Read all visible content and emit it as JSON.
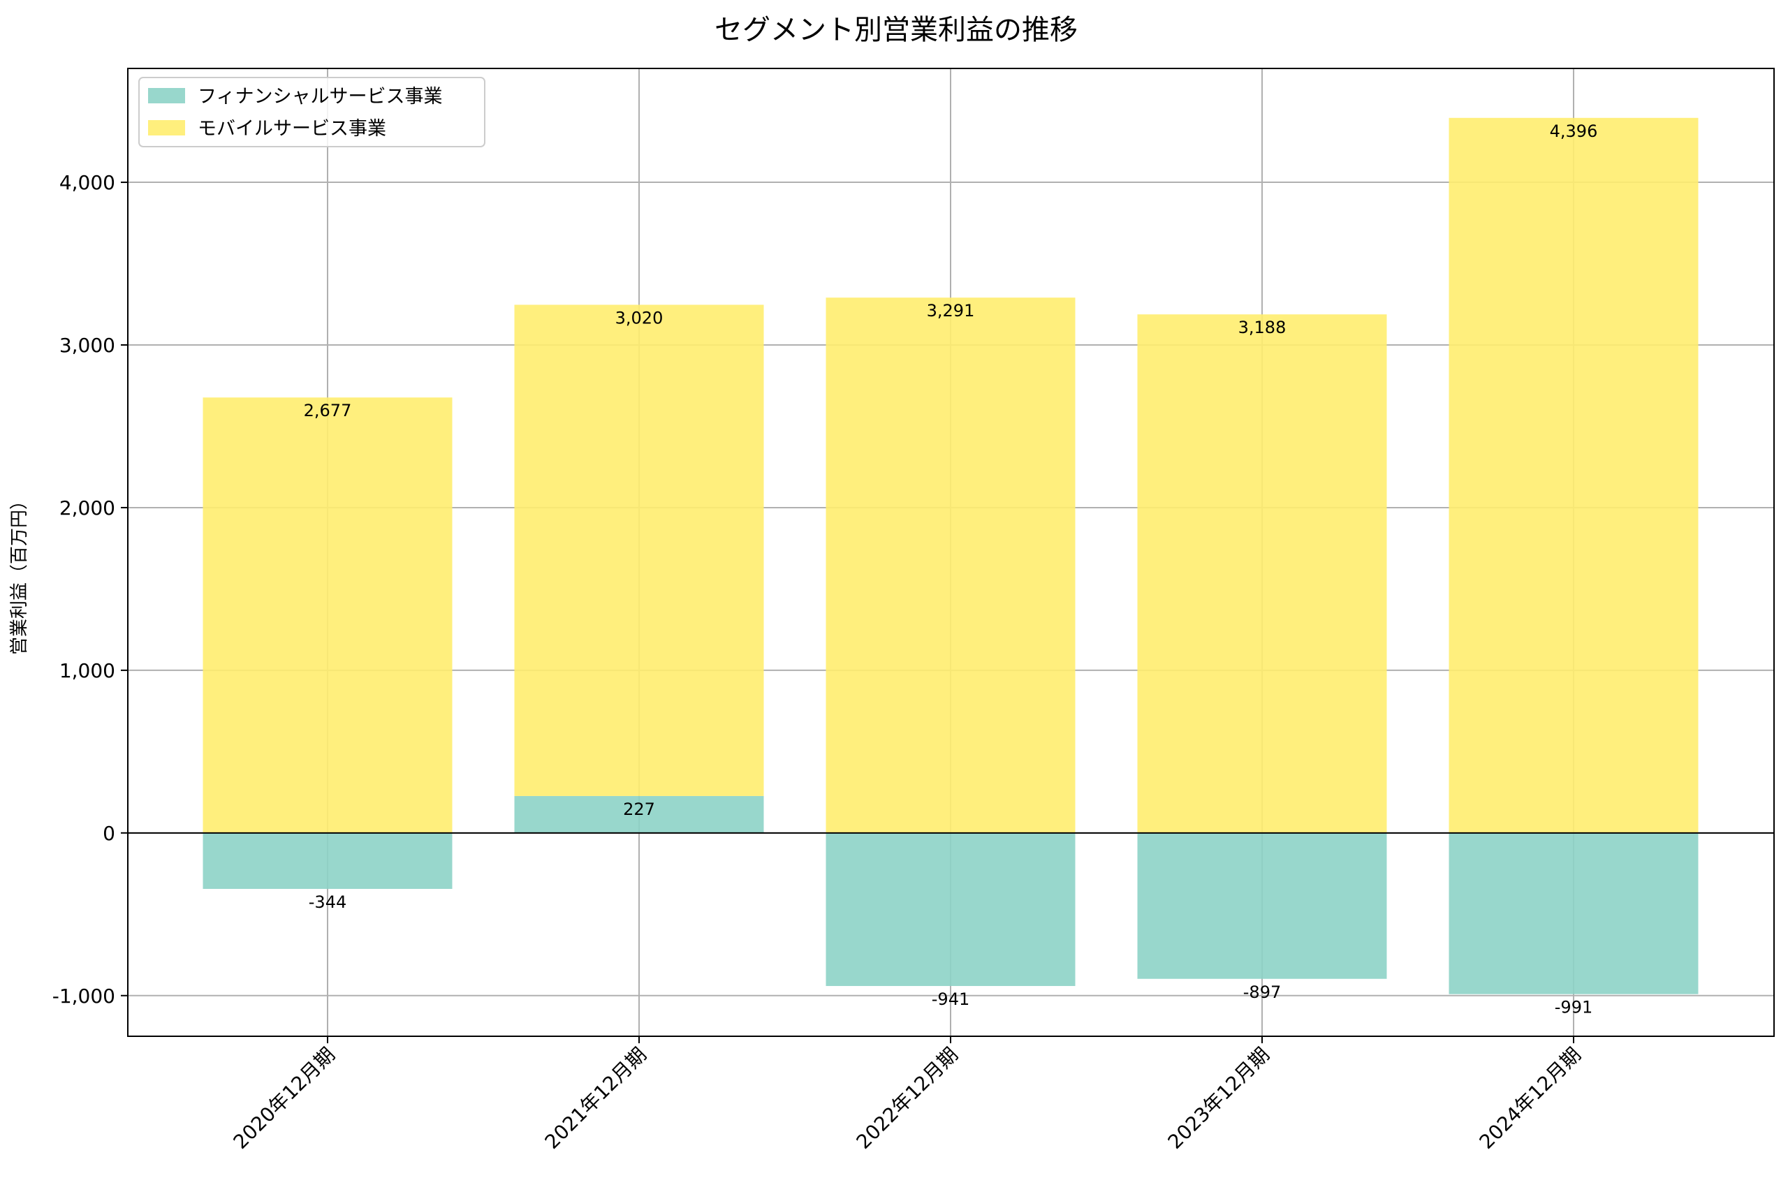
{
  "chart_data": {
    "type": "bar",
    "stacked": true,
    "title": "セグメント別営業利益の推移",
    "xlabel": "",
    "ylabel": "営業利益（百万円）",
    "categories": [
      "2020年12月期",
      "2021年12月期",
      "2022年12月期",
      "2023年12月期",
      "2024年12月期"
    ],
    "series": [
      {
        "name": "フィナンシャルサービス事業",
        "color": "#8dd3c7",
        "values": [
          -344,
          227,
          -941,
          -897,
          -991
        ],
        "labels": [
          "-344",
          "227",
          "-941",
          "-897",
          "-991"
        ]
      },
      {
        "name": "モバイルサービス事業",
        "color": "#ffed6f",
        "values": [
          2677,
          3020,
          3291,
          3188,
          4396
        ],
        "labels": [
          "2,677",
          "3,020",
          "3,291",
          "3,188",
          "4,396"
        ]
      }
    ],
    "ylim": [
      -1250,
      4700
    ],
    "yticks": [
      -1000,
      0,
      1000,
      2000,
      3000,
      4000
    ],
    "ytick_labels": [
      "-1,000",
      "0",
      "1,000",
      "2,000",
      "3,000",
      "4,000"
    ],
    "grid": true,
    "legend_position": "upper-left"
  }
}
